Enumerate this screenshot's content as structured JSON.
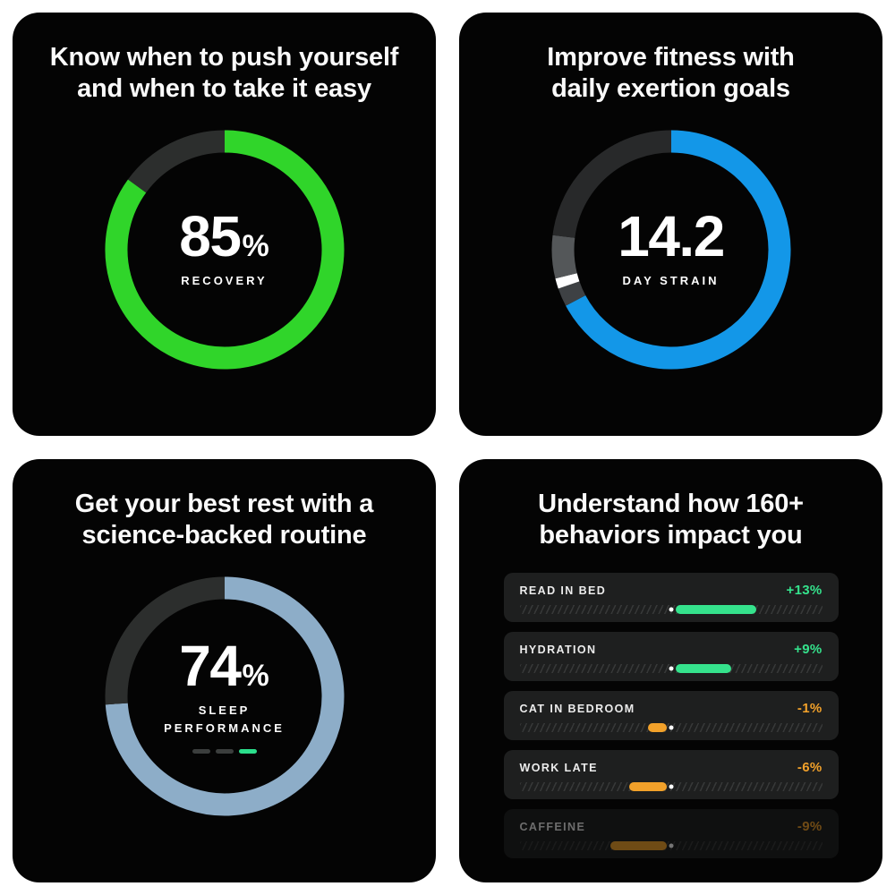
{
  "page": {
    "background": "#ffffff",
    "panel_background": "#040404"
  },
  "panels": {
    "recovery": {
      "title_line1": "Know when to push yourself",
      "title_line2": "and when to take it easy",
      "value": "85",
      "value_unit": "%",
      "metric_label": "RECOVERY",
      "ring": {
        "percent": 85,
        "segments": [
          {
            "from": 0,
            "to": 306,
            "color": "#30d52a"
          },
          {
            "from": 306,
            "to": 360,
            "color": "#2c2e2d"
          }
        ]
      }
    },
    "strain": {
      "title_line1": "Improve fitness with",
      "title_line2": "daily exertion goals",
      "value": "14.2",
      "metric_label": "DAY STRAIN",
      "ring": {
        "value": 14.2,
        "max": 21,
        "segments": [
          {
            "from": 0,
            "to": 242,
            "color": "#1397e8"
          },
          {
            "from": 242,
            "to": 251,
            "color": "#3e4144"
          },
          {
            "from": 251,
            "to": 256,
            "color": "#ffffff"
          },
          {
            "from": 256,
            "to": 277,
            "color": "#545759"
          },
          {
            "from": 277,
            "to": 360,
            "color": "#28292a"
          }
        ]
      }
    },
    "sleep": {
      "title_line1": "Get your best rest with a",
      "title_line2": "science-backed routine",
      "value": "74",
      "value_unit": "%",
      "metric_label_line1": "SLEEP",
      "metric_label_line2": "PERFORMANCE",
      "ring": {
        "percent": 74,
        "segments": [
          {
            "from": 0,
            "to": 266,
            "color": "#8dadc8"
          },
          {
            "from": 266,
            "to": 360,
            "color": "#2c2e2d"
          }
        ]
      },
      "dashes": [
        "#3b3e3d",
        "#3b3e3d",
        "#2bdf8c"
      ]
    },
    "behaviors": {
      "title_line1": "Understand how 160+",
      "title_line2": "behaviors impact you",
      "colors": {
        "positive": "#35e28c",
        "negative": "#f2a12a"
      },
      "items": [
        {
          "label": "READ IN BED",
          "value": "+13%",
          "pct": 13,
          "direction": "positive",
          "faded": false
        },
        {
          "label": "HYDRATION",
          "value": "+9%",
          "pct": 9,
          "direction": "positive",
          "faded": false
        },
        {
          "label": "CAT IN BEDROOM",
          "value": "-1%",
          "pct": 1,
          "direction": "negative",
          "faded": false
        },
        {
          "label": "WORK LATE",
          "value": "-6%",
          "pct": 6,
          "direction": "negative",
          "faded": false
        },
        {
          "label": "CAFFEINE",
          "value": "-9%",
          "pct": 9,
          "direction": "negative",
          "faded": true
        }
      ]
    }
  },
  "chart_data": [
    {
      "type": "pie",
      "variant": "gauge-ring",
      "title": "RECOVERY",
      "value": 85,
      "unit": "%",
      "range": [
        0,
        100
      ],
      "color": "#30d52a"
    },
    {
      "type": "pie",
      "variant": "gauge-ring",
      "title": "DAY STRAIN",
      "value": 14.2,
      "range": [
        0,
        21
      ],
      "color": "#1397e8"
    },
    {
      "type": "pie",
      "variant": "gauge-ring",
      "title": "SLEEP PERFORMANCE",
      "value": 74,
      "unit": "%",
      "range": [
        0,
        100
      ],
      "color": "#8dadc8"
    },
    {
      "type": "bar",
      "variant": "diverging-horizontal",
      "title": "behaviors impact",
      "categories": [
        "READ IN BED",
        "HYDRATION",
        "CAT IN BEDROOM",
        "WORK LATE",
        "CAFFEINE"
      ],
      "values": [
        13,
        9,
        -1,
        -6,
        -9
      ],
      "unit": "%"
    }
  ]
}
